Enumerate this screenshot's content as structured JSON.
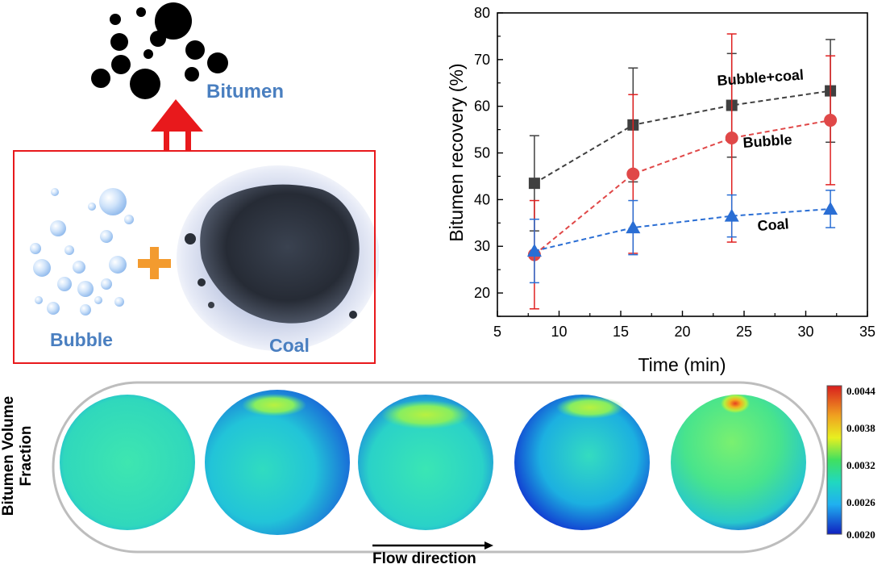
{
  "left_panel": {
    "bitumen_label": "Bitumen",
    "bubble_label": "Bubble",
    "coal_label": "Coal",
    "arrow_color": "#e8191c",
    "plus_color": "#f39b2f",
    "label_color": "#4a7fc0"
  },
  "chart_data": {
    "type": "line",
    "xlabel": "Time (min)",
    "ylabel": "Bitumen recovery (%)",
    "xlim": [
      5,
      35
    ],
    "ylim": [
      15,
      80
    ],
    "x_ticks": [
      5,
      10,
      15,
      20,
      25,
      30,
      35
    ],
    "y_ticks": [
      20,
      30,
      40,
      50,
      60,
      70,
      80
    ],
    "x": [
      8,
      16,
      24,
      32
    ],
    "series": [
      {
        "name": "Bubble+coal",
        "marker": "square",
        "color": "#404040",
        "errbar_color": "#404040",
        "values": [
          43.5,
          56,
          60.2,
          63.3
        ],
        "err": [
          10.2,
          12.2,
          11.1,
          11.0
        ]
      },
      {
        "name": "Bubble",
        "marker": "circle",
        "color": "#e04848",
        "errbar_color": "#e02020",
        "values": [
          28.2,
          45.5,
          53.2,
          57
        ],
        "err": [
          11.6,
          17,
          22.3,
          13.8
        ]
      },
      {
        "name": "Coal",
        "marker": "triangle",
        "color": "#2a6ed4",
        "errbar_color": "#2a6ed4",
        "values": [
          29,
          34,
          36.5,
          38
        ],
        "err": [
          6.8,
          5.8,
          4.5,
          4.0
        ]
      }
    ]
  },
  "bottom_panel": {
    "title_line1": "Bitumen Volume",
    "title_line2": "Fraction",
    "flow_label": "Flow direction",
    "colorbar_ticks": [
      "0.0044",
      "0.0038",
      "0.0032",
      "0.0026",
      "0.0020"
    ]
  }
}
